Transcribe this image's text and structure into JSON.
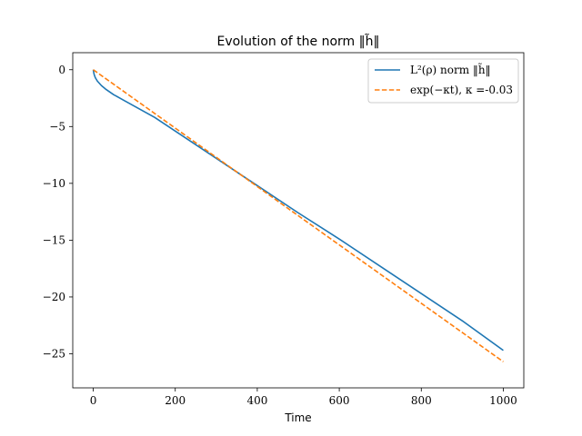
{
  "chart_data": {
    "type": "line",
    "title": "Evolution of the norm ‖h̃‖",
    "xlabel": "Time",
    "ylabel": "",
    "xlim": [
      -50,
      1050
    ],
    "ylim": [
      -28,
      1.5
    ],
    "xticks": [
      0,
      200,
      400,
      600,
      800,
      1000
    ],
    "xtick_labels": [
      "0",
      "200",
      "400",
      "600",
      "800",
      "1000"
    ],
    "yticks": [
      0,
      -5,
      -10,
      -15,
      -20,
      -25
    ],
    "ytick_labels": [
      "0",
      "−5",
      "−10",
      "−15",
      "−20",
      "−25"
    ],
    "grid": false,
    "legend_position": "top-right",
    "series": [
      {
        "name": "L²(ρ) norm ‖h̃‖",
        "color": "#1f77b4",
        "style": "solid",
        "x": [
          0,
          2,
          5,
          10,
          20,
          30,
          50,
          75,
          100,
          150,
          200,
          300,
          400,
          500,
          600,
          700,
          800,
          900,
          1000
        ],
        "y": [
          0,
          -0.4,
          -0.7,
          -1.0,
          -1.4,
          -1.7,
          -2.2,
          -2.7,
          -3.2,
          -4.2,
          -5.4,
          -7.8,
          -10.2,
          -12.6,
          -14.9,
          -17.3,
          -19.7,
          -22.1,
          -24.7
        ]
      },
      {
        "name": "exp(−κt), κ =-0.03",
        "color": "#ff7f0e",
        "style": "dashed",
        "x": [
          0,
          1000
        ],
        "y": [
          0,
          -25.7
        ]
      }
    ]
  }
}
